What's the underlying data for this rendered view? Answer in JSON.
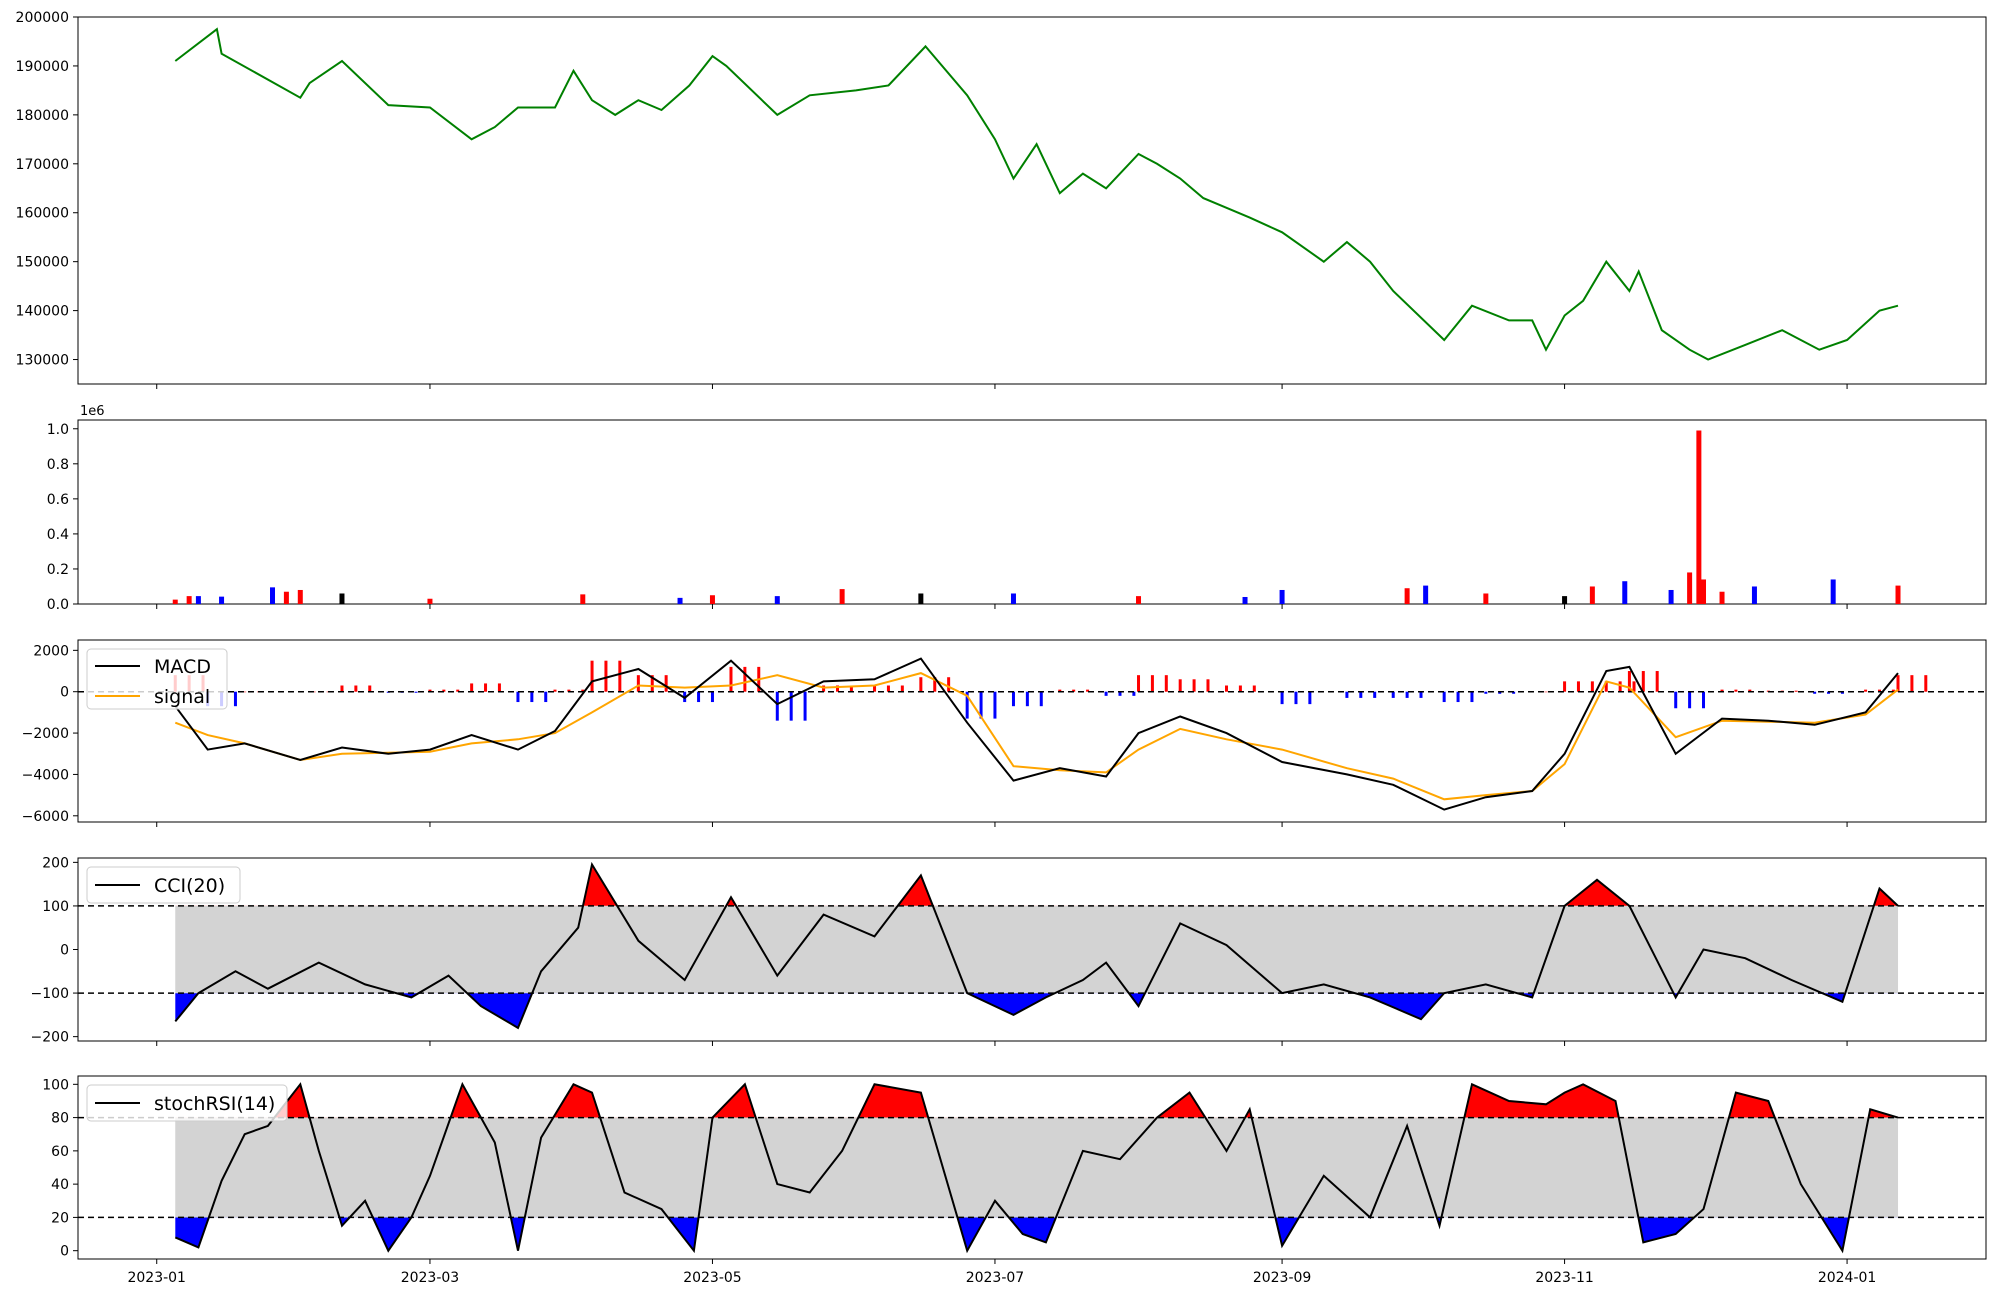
{
  "chart_data": [
    {
      "type": "line",
      "panel": "price",
      "ylim": [
        125000,
        200000
      ],
      "yticks": [
        130000,
        140000,
        150000,
        160000,
        170000,
        180000,
        190000,
        200000
      ],
      "ytick_labels": [
        "130000",
        "140000",
        "150000",
        "160000",
        "170000",
        "180000",
        "190000",
        "200000"
      ],
      "grid": false,
      "colors": {
        "line": "#008000"
      },
      "x_dates": [
        "2023-01-05",
        "2023-01-14",
        "2023-01-15",
        "2023-02-01",
        "2023-02-03",
        "2023-02-10",
        "2023-02-20",
        "2023-03-01",
        "2023-03-10",
        "2023-03-15",
        "2023-03-20",
        "2023-03-28",
        "2023-04-01",
        "2023-04-05",
        "2023-04-10",
        "2023-04-15",
        "2023-04-20",
        "2023-04-26",
        "2023-05-01",
        "2023-05-04",
        "2023-05-15",
        "2023-05-22",
        "2023-06-01",
        "2023-06-08",
        "2023-06-16",
        "2023-06-25",
        "2023-07-01",
        "2023-07-05",
        "2023-07-10",
        "2023-07-15",
        "2023-07-20",
        "2023-07-25",
        "2023-08-01",
        "2023-08-05",
        "2023-08-10",
        "2023-08-15",
        "2023-08-20",
        "2023-08-25",
        "2023-09-01",
        "2023-09-10",
        "2023-09-15",
        "2023-09-20",
        "2023-09-25",
        "2023-10-06",
        "2023-10-12",
        "2023-10-20",
        "2023-10-25",
        "2023-10-28",
        "2023-11-01",
        "2023-11-05",
        "2023-11-10",
        "2023-11-15",
        "2023-11-17",
        "2023-11-22",
        "2023-11-28",
        "2023-12-02",
        "2023-12-10",
        "2023-12-18",
        "2023-12-26",
        "2024-01-01",
        "2024-01-08",
        "2024-01-12"
      ],
      "values": [
        191000,
        197500,
        192500,
        183500,
        186500,
        191000,
        182000,
        181500,
        175000,
        177500,
        181500,
        181500,
        189000,
        183000,
        180000,
        183000,
        181000,
        186000,
        192000,
        190000,
        180000,
        184000,
        185000,
        186000,
        194000,
        184000,
        175000,
        167000,
        174000,
        164000,
        168000,
        165000,
        172000,
        170000,
        167000,
        163000,
        161000,
        159000,
        156000,
        150000,
        154000,
        150000,
        144000,
        134000,
        141000,
        138000,
        138000,
        132000,
        139000,
        142000,
        150000,
        144000,
        148000,
        136000,
        132000,
        130000,
        133000,
        136000,
        132000,
        134000,
        140000,
        141000
      ]
    },
    {
      "type": "bar",
      "panel": "volume",
      "offset_label": "1e6",
      "ylim": [
        0,
        1050000
      ],
      "yticks": [
        0,
        200000,
        400000,
        600000,
        800000,
        1000000
      ],
      "ytick_labels": [
        "0.0",
        "0.2",
        "0.4",
        "0.6",
        "0.8",
        "1.0"
      ],
      "grid": false,
      "colors": {
        "up": "#ff0000",
        "down": "#0000ff",
        "flat": "#000000"
      },
      "series": [
        {
          "date": "2023-01-05",
          "value": 25000,
          "direction": "up"
        },
        {
          "date": "2023-01-08",
          "value": 45000,
          "direction": "up"
        },
        {
          "date": "2023-01-10",
          "value": 45000,
          "direction": "down"
        },
        {
          "date": "2023-01-15",
          "value": 42000,
          "direction": "down"
        },
        {
          "date": "2023-01-26",
          "value": 95000,
          "direction": "down"
        },
        {
          "date": "2023-01-29",
          "value": 70000,
          "direction": "up"
        },
        {
          "date": "2023-02-01",
          "value": 80000,
          "direction": "up"
        },
        {
          "date": "2023-02-10",
          "value": 60000,
          "direction": "flat"
        },
        {
          "date": "2023-03-01",
          "value": 30000,
          "direction": "up"
        },
        {
          "date": "2023-04-03",
          "value": 55000,
          "direction": "up"
        },
        {
          "date": "2023-04-24",
          "value": 35000,
          "direction": "down"
        },
        {
          "date": "2023-05-01",
          "value": 50000,
          "direction": "up"
        },
        {
          "date": "2023-05-15",
          "value": 45000,
          "direction": "down"
        },
        {
          "date": "2023-05-29",
          "value": 85000,
          "direction": "up"
        },
        {
          "date": "2023-06-15",
          "value": 60000,
          "direction": "flat"
        },
        {
          "date": "2023-07-05",
          "value": 60000,
          "direction": "down"
        },
        {
          "date": "2023-08-01",
          "value": 45000,
          "direction": "up"
        },
        {
          "date": "2023-08-24",
          "value": 40000,
          "direction": "down"
        },
        {
          "date": "2023-09-01",
          "value": 80000,
          "direction": "down"
        },
        {
          "date": "2023-09-28",
          "value": 90000,
          "direction": "up"
        },
        {
          "date": "2023-10-02",
          "value": 105000,
          "direction": "down"
        },
        {
          "date": "2023-10-15",
          "value": 60000,
          "direction": "up"
        },
        {
          "date": "2023-11-01",
          "value": 45000,
          "direction": "flat"
        },
        {
          "date": "2023-11-07",
          "value": 100000,
          "direction": "up"
        },
        {
          "date": "2023-11-14",
          "value": 130000,
          "direction": "down"
        },
        {
          "date": "2023-11-24",
          "value": 80000,
          "direction": "down"
        },
        {
          "date": "2023-11-28",
          "value": 180000,
          "direction": "up"
        },
        {
          "date": "2023-11-30",
          "value": 990000,
          "direction": "up"
        },
        {
          "date": "2023-12-01",
          "value": 140000,
          "direction": "up"
        },
        {
          "date": "2023-12-05",
          "value": 70000,
          "direction": "up"
        },
        {
          "date": "2023-12-12",
          "value": 100000,
          "direction": "down"
        },
        {
          "date": "2023-12-29",
          "value": 140000,
          "direction": "down"
        },
        {
          "date": "2024-01-12",
          "value": 105000,
          "direction": "up"
        }
      ]
    },
    {
      "type": "line",
      "panel": "macd",
      "ylim": [
        -6300,
        2500
      ],
      "yticks": [
        -6000,
        -4000,
        -2000,
        0,
        2000
      ],
      "ytick_labels": [
        "−6000",
        "−4000",
        "−2000",
        "0",
        "2000"
      ],
      "grid": false,
      "reference_lines": [
        0
      ],
      "legend": {
        "placement": "upper-left",
        "entries": [
          "MACD",
          "signal"
        ]
      },
      "colors": {
        "macd": "#000000",
        "signal": "#ffa500",
        "hist_pos": "#ff0000",
        "hist_neg": "#0000ff"
      },
      "x_dates": [
        "2023-01-05",
        "2023-01-12",
        "2023-01-20",
        "2023-02-01",
        "2023-02-10",
        "2023-02-20",
        "2023-03-01",
        "2023-03-10",
        "2023-03-20",
        "2023-03-28",
        "2023-04-05",
        "2023-04-15",
        "2023-04-25",
        "2023-05-05",
        "2023-05-15",
        "2023-05-25",
        "2023-06-05",
        "2023-06-15",
        "2023-06-25",
        "2023-07-05",
        "2023-07-15",
        "2023-07-25",
        "2023-08-01",
        "2023-08-10",
        "2023-08-20",
        "2023-09-01",
        "2023-09-15",
        "2023-09-25",
        "2023-10-06",
        "2023-10-15",
        "2023-10-25",
        "2023-11-01",
        "2023-11-10",
        "2023-11-15",
        "2023-11-25",
        "2023-12-05",
        "2023-12-15",
        "2023-12-25",
        "2024-01-05",
        "2024-01-12"
      ],
      "series": [
        {
          "name": "MACD",
          "values": [
            -700,
            -2800,
            -2500,
            -3300,
            -2700,
            -3000,
            -2800,
            -2100,
            -2800,
            -1900,
            500,
            1100,
            -300,
            1500,
            -600,
            500,
            600,
            1600,
            -1500,
            -4300,
            -3700,
            -4100,
            -2000,
            -1200,
            -2000,
            -3400,
            -4000,
            -4500,
            -5700,
            -5100,
            -4800,
            -3000,
            1000,
            1200,
            -3000,
            -1300,
            -1400,
            -1600,
            -1000,
            900
          ]
        },
        {
          "name": "signal",
          "values": [
            -1500,
            -2100,
            -2500,
            -3300,
            -3000,
            -2950,
            -2900,
            -2500,
            -2300,
            -2000,
            -1000,
            300,
            200,
            300,
            800,
            200,
            300,
            900,
            -200,
            -3600,
            -3800,
            -3900,
            -2800,
            -1800,
            -2300,
            -2800,
            -3700,
            -4200,
            -5200,
            -5000,
            -4800,
            -3500,
            500,
            200,
            -2200,
            -1400,
            -1450,
            -1500,
            -1100,
            100
          ]
        }
      ]
    },
    {
      "type": "line",
      "panel": "cci",
      "ylim": [
        -210,
        210
      ],
      "yticks": [
        -200,
        -100,
        0,
        100,
        200
      ],
      "ytick_labels": [
        "−200",
        "−100",
        "0",
        "100",
        "200"
      ],
      "grid": false,
      "reference_lines": [
        100,
        -100
      ],
      "legend": {
        "placement": "upper-left",
        "entries": [
          "CCI(20)"
        ]
      },
      "colors": {
        "line": "#000000",
        "band": "#d3d3d3",
        "above": "#ff0000",
        "below": "#0000ff"
      },
      "x_dates": [
        "2023-01-05",
        "2023-01-10",
        "2023-01-18",
        "2023-01-25",
        "2023-02-05",
        "2023-02-15",
        "2023-02-25",
        "2023-03-05",
        "2023-03-12",
        "2023-03-20",
        "2023-03-25",
        "2023-04-02",
        "2023-04-05",
        "2023-04-15",
        "2023-04-25",
        "2023-05-05",
        "2023-05-15",
        "2023-05-25",
        "2023-06-05",
        "2023-06-15",
        "2023-06-25",
        "2023-07-05",
        "2023-07-12",
        "2023-07-20",
        "2023-07-25",
        "2023-08-01",
        "2023-08-10",
        "2023-08-20",
        "2023-09-01",
        "2023-09-10",
        "2023-09-20",
        "2023-10-01",
        "2023-10-06",
        "2023-10-15",
        "2023-10-25",
        "2023-11-01",
        "2023-11-08",
        "2023-11-15",
        "2023-11-25",
        "2023-12-01",
        "2023-12-10",
        "2023-12-20",
        "2023-12-31",
        "2024-01-08",
        "2024-01-12"
      ],
      "values": [
        -165,
        -100,
        -50,
        -90,
        -30,
        -80,
        -110,
        -60,
        -130,
        -180,
        -50,
        50,
        195,
        20,
        -70,
        120,
        -60,
        80,
        30,
        170,
        -100,
        -150,
        -110,
        -70,
        -30,
        -130,
        60,
        10,
        -100,
        -80,
        -110,
        -160,
        -100,
        -80,
        -110,
        100,
        160,
        100,
        -110,
        0,
        -20,
        -70,
        -120,
        140,
        100
      ]
    },
    {
      "type": "line",
      "panel": "stochrsi",
      "ylim": [
        -5,
        105
      ],
      "yticks": [
        0,
        20,
        40,
        60,
        80,
        100
      ],
      "ytick_labels": [
        "0",
        "20",
        "40",
        "60",
        "80",
        "100"
      ],
      "grid": false,
      "reference_lines": [
        80,
        20
      ],
      "legend": {
        "placement": "upper-left",
        "entries": [
          "stochRSI(14)"
        ]
      },
      "colors": {
        "line": "#000000",
        "band": "#d3d3d3",
        "above": "#ff0000",
        "below": "#0000ff"
      },
      "x_dates": [
        "2023-01-05",
        "2023-01-10",
        "2023-01-15",
        "2023-01-20",
        "2023-01-25",
        "2023-02-01",
        "2023-02-05",
        "2023-02-10",
        "2023-02-15",
        "2023-02-20",
        "2023-02-25",
        "2023-03-01",
        "2023-03-08",
        "2023-03-15",
        "2023-03-20",
        "2023-03-25",
        "2023-04-01",
        "2023-04-05",
        "2023-04-12",
        "2023-04-20",
        "2023-04-27",
        "2023-05-01",
        "2023-05-08",
        "2023-05-15",
        "2023-05-22",
        "2023-05-29",
        "2023-06-05",
        "2023-06-15",
        "2023-06-25",
        "2023-07-01",
        "2023-07-07",
        "2023-07-12",
        "2023-07-20",
        "2023-07-28",
        "2023-08-05",
        "2023-08-12",
        "2023-08-20",
        "2023-08-25",
        "2023-09-01",
        "2023-09-10",
        "2023-09-20",
        "2023-09-28",
        "2023-10-05",
        "2023-10-12",
        "2023-10-20",
        "2023-10-28",
        "2023-11-01",
        "2023-11-05",
        "2023-11-12",
        "2023-11-18",
        "2023-11-25",
        "2023-12-01",
        "2023-12-08",
        "2023-12-15",
        "2023-12-22",
        "2023-12-31",
        "2024-01-06",
        "2024-01-12"
      ],
      "values": [
        8,
        2,
        42,
        70,
        75,
        100,
        60,
        15,
        30,
        0,
        20,
        45,
        100,
        65,
        0,
        68,
        100,
        95,
        35,
        25,
        0,
        80,
        100,
        40,
        35,
        60,
        100,
        95,
        0,
        30,
        10,
        5,
        60,
        55,
        80,
        95,
        60,
        85,
        3,
        45,
        20,
        75,
        15,
        100,
        90,
        88,
        95,
        100,
        90,
        5,
        10,
        25,
        95,
        90,
        40,
        0,
        85,
        80
      ]
    }
  ],
  "x_axis": {
    "tick_labels": [
      "2023-01",
      "2023-03",
      "2023-05",
      "2023-07",
      "2023-09",
      "2023-11",
      "2024-01"
    ],
    "range": [
      "2022-12-15",
      "2024-01-31"
    ]
  },
  "legends": {
    "macd": [
      "MACD",
      "signal"
    ],
    "cci": [
      "CCI(20)"
    ],
    "stochrsi": [
      "stochRSI(14)"
    ]
  },
  "volume_offset_label": "1e6"
}
